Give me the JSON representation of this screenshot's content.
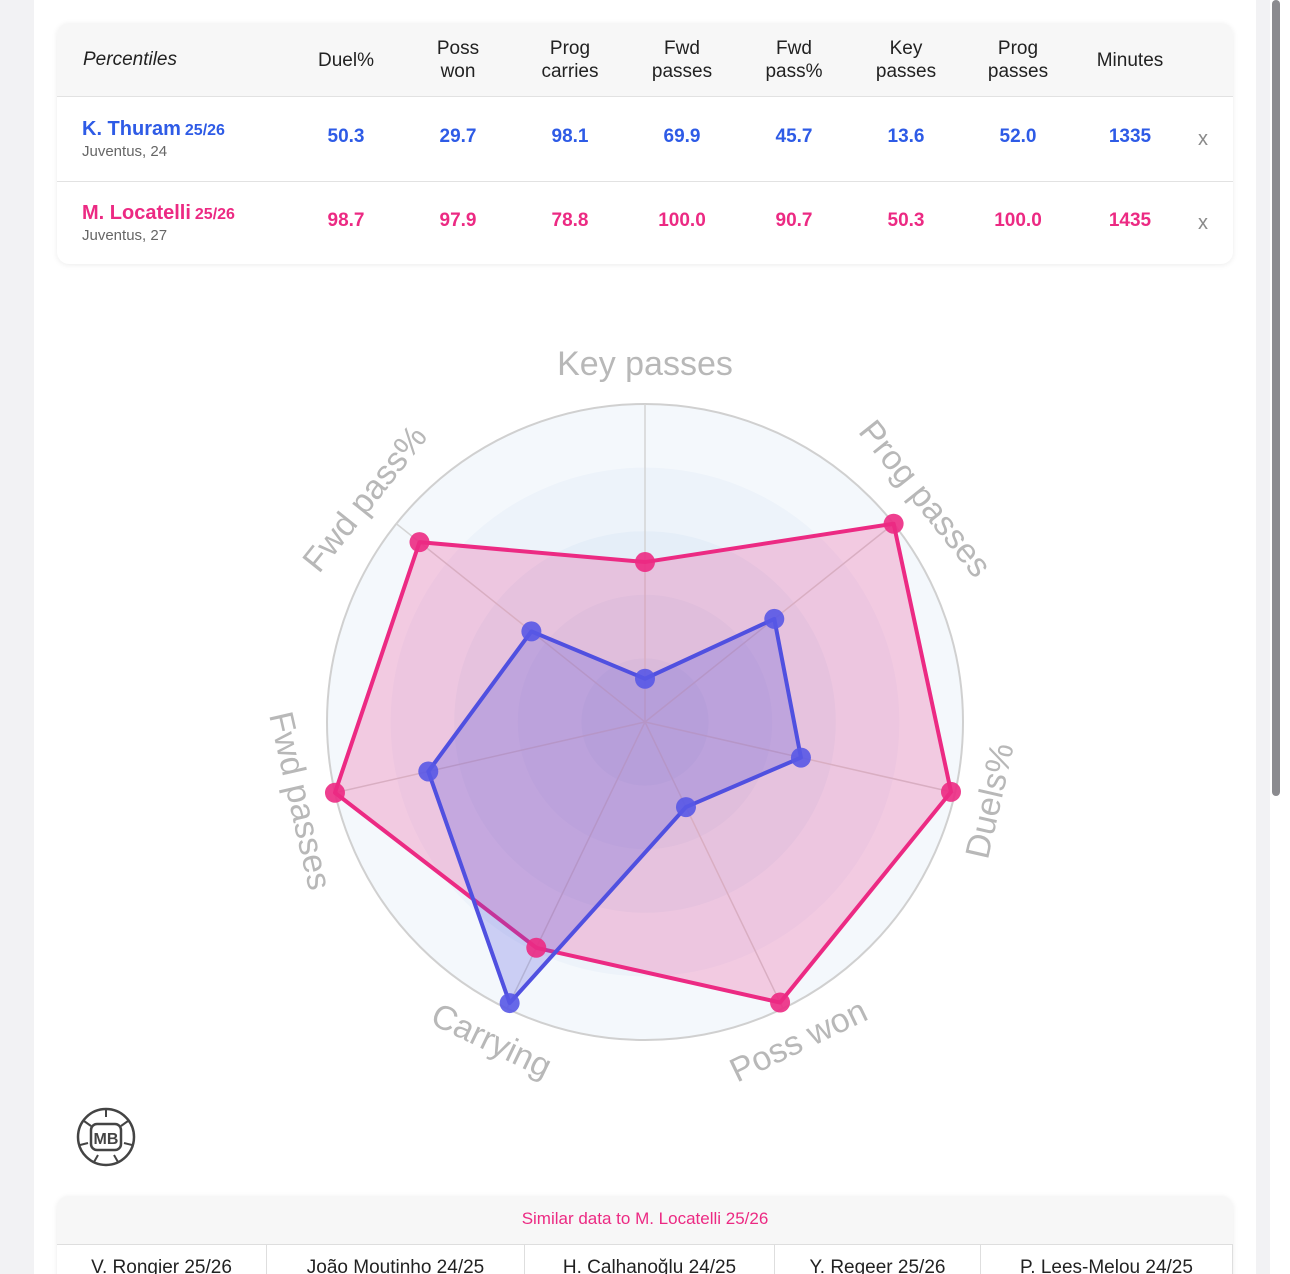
{
  "table": {
    "header_first": "Percentiles",
    "columns": [
      "Duel%",
      "Poss won",
      "Prog carries",
      "Fwd passes",
      "Fwd pass%",
      "Key passes",
      "Prog passes",
      "Minutes"
    ],
    "columns_line1": [
      "Duel%",
      "Poss",
      "Prog",
      "Fwd",
      "Fwd",
      "Key",
      "Prog",
      "Minutes"
    ],
    "columns_line2": [
      "",
      "won",
      "carries",
      "passes",
      "pass%",
      "passes",
      "passes",
      ""
    ],
    "remove_label": "x"
  },
  "players": [
    {
      "name": "K. Thuram",
      "season": "25/26",
      "team": "Juventus, 24",
      "color": "#2e5be6",
      "values": [
        "50.3",
        "29.7",
        "98.1",
        "69.9",
        "45.7",
        "13.6",
        "52.0",
        "1335"
      ]
    },
    {
      "name": "M. Locatelli",
      "season": "25/26",
      "team": "Juventus, 27",
      "color": "#ec2a83",
      "values": [
        "98.7",
        "97.9",
        "78.8",
        "100.0",
        "90.7",
        "50.3",
        "100.0",
        "1435"
      ]
    }
  ],
  "chart_data": {
    "type": "radar",
    "axes": [
      "Key passes",
      "Prog passes",
      "Duels%",
      "Poss won",
      "Carrying",
      "Fwd passes",
      "Fwd pass%"
    ],
    "range": [
      0,
      100
    ],
    "series": [
      {
        "name": "K. Thuram 25/26",
        "color": "#2e5be6",
        "values": [
          13.6,
          52.0,
          50.3,
          29.7,
          98.1,
          69.9,
          45.7
        ]
      },
      {
        "name": "M. Locatelli 25/26",
        "color": "#ec2a83",
        "values": [
          50.3,
          100.0,
          98.7,
          97.9,
          78.8,
          100.0,
          90.7
        ]
      }
    ]
  },
  "logo": {
    "text": "MB"
  },
  "similar": {
    "title": "Similar data to M. Locatelli 25/26",
    "items": [
      "V. Rongier 25/26",
      "João Moutinho 24/25",
      "H. Calhanoğlu 24/25",
      "Y. Regeer 25/26",
      "P. Lees-Melou 24/25"
    ]
  }
}
